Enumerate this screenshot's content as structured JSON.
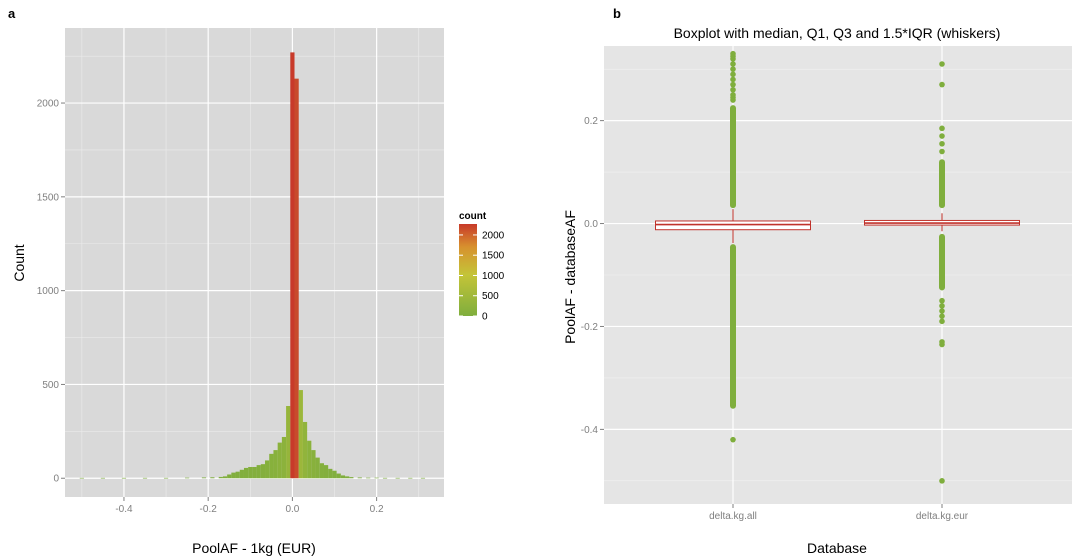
{
  "chart_data": [
    {
      "panel": "a",
      "type": "bar",
      "xlabel": "PoolAF - 1kg (EUR)",
      "ylabel": "Count",
      "xlim": [
        -0.54,
        0.36
      ],
      "ylim": [
        -100,
        2400
      ],
      "x_ticks": [
        -0.4,
        -0.2,
        0.0,
        0.2
      ],
      "x_tick_labels": [
        "-0.4",
        "-0.2",
        "0.0",
        "0.2"
      ],
      "y_ticks": [
        0,
        500,
        1000,
        1500,
        2000
      ],
      "y_tick_labels": [
        "0",
        "500",
        "1000",
        "1500",
        "2000"
      ],
      "bin_width": 0.01,
      "bins": [
        {
          "x": -0.5,
          "count": 2
        },
        {
          "x": -0.45,
          "count": 2
        },
        {
          "x": -0.4,
          "count": 2
        },
        {
          "x": -0.35,
          "count": 2
        },
        {
          "x": -0.3,
          "count": 2
        },
        {
          "x": -0.25,
          "count": 3
        },
        {
          "x": -0.21,
          "count": 4
        },
        {
          "x": -0.19,
          "count": 5
        },
        {
          "x": -0.17,
          "count": 7
        },
        {
          "x": -0.16,
          "count": 10
        },
        {
          "x": -0.15,
          "count": 20
        },
        {
          "x": -0.14,
          "count": 30
        },
        {
          "x": -0.13,
          "count": 35
        },
        {
          "x": -0.12,
          "count": 45
        },
        {
          "x": -0.11,
          "count": 55
        },
        {
          "x": -0.1,
          "count": 60
        },
        {
          "x": -0.09,
          "count": 60
        },
        {
          "x": -0.08,
          "count": 70
        },
        {
          "x": -0.07,
          "count": 75
        },
        {
          "x": -0.06,
          "count": 95
        },
        {
          "x": -0.05,
          "count": 130
        },
        {
          "x": -0.04,
          "count": 150
        },
        {
          "x": -0.03,
          "count": 190
        },
        {
          "x": -0.02,
          "count": 220
        },
        {
          "x": -0.01,
          "count": 385
        },
        {
          "x": 0.0,
          "count": 2270
        },
        {
          "x": 0.01,
          "count": 2130
        },
        {
          "x": 0.02,
          "count": 470
        },
        {
          "x": 0.03,
          "count": 300
        },
        {
          "x": 0.04,
          "count": 200
        },
        {
          "x": 0.05,
          "count": 150
        },
        {
          "x": 0.06,
          "count": 110
        },
        {
          "x": 0.07,
          "count": 80
        },
        {
          "x": 0.08,
          "count": 70
        },
        {
          "x": 0.09,
          "count": 50
        },
        {
          "x": 0.1,
          "count": 40
        },
        {
          "x": 0.11,
          "count": 25
        },
        {
          "x": 0.12,
          "count": 15
        },
        {
          "x": 0.13,
          "count": 10
        },
        {
          "x": 0.14,
          "count": 6
        },
        {
          "x": 0.16,
          "count": 4
        },
        {
          "x": 0.18,
          "count": 3
        },
        {
          "x": 0.2,
          "count": 3
        },
        {
          "x": 0.22,
          "count": 2
        },
        {
          "x": 0.25,
          "count": 2
        },
        {
          "x": 0.28,
          "count": 2
        },
        {
          "x": 0.31,
          "count": 2
        }
      ],
      "legend": {
        "title": "count",
        "placement": "right",
        "breaks": [
          2000,
          1500,
          1000,
          500,
          0
        ],
        "break_labels": [
          "2000",
          "1500",
          "1000",
          "500",
          "0"
        ],
        "range": [
          0,
          2270
        ]
      },
      "fill_gradient": {
        "low": "#7fae3d",
        "mid": "#c4c438",
        "high": "#c83a2a"
      },
      "background": "#d9d9d9",
      "grid": true
    },
    {
      "panel": "b",
      "type": "boxplot",
      "title": "Boxplot with median, Q1, Q3 and 1.5*IQR (whiskers)",
      "xlabel": "Database",
      "ylabel": "PoolAF - databaseAF",
      "ylim": [
        -0.545,
        0.345
      ],
      "y_ticks": [
        -0.4,
        -0.2,
        0.0,
        0.2
      ],
      "y_tick_labels": [
        "-0.4",
        "-0.2",
        "0.0",
        "0.2"
      ],
      "categories": [
        "delta.kg.all",
        "delta.kg.eur"
      ],
      "boxes": [
        {
          "name": "delta.kg.all",
          "q1": -0.012,
          "median": -0.002,
          "q3": 0.005,
          "whisker_low": -0.038,
          "whisker_high": 0.028,
          "outliers_range_low": [
            -0.36,
            -0.04
          ],
          "outliers_range_high": [
            0.03,
            0.23
          ],
          "outliers": [
            0.33,
            0.325,
            0.32,
            0.31,
            0.3,
            0.29,
            0.28,
            0.27,
            0.26,
            0.25,
            0.245,
            0.24,
            -0.42
          ]
        },
        {
          "name": "delta.kg.eur",
          "q1": -0.003,
          "median": 0.001,
          "q3": 0.006,
          "whisker_low": -0.015,
          "whisker_high": 0.02,
          "outliers_range_low": [
            -0.13,
            -0.02
          ],
          "outliers_range_high": [
            0.03,
            0.125
          ],
          "outliers": [
            0.31,
            0.27,
            0.185,
            0.17,
            0.155,
            0.14,
            -0.15,
            -0.16,
            -0.17,
            -0.18,
            -0.19,
            -0.23,
            -0.235,
            -0.5
          ]
        }
      ],
      "colors": {
        "box": "#c0322b",
        "outlier": "#7fae3d"
      },
      "background": "#e5e5e5",
      "grid": true
    }
  ]
}
